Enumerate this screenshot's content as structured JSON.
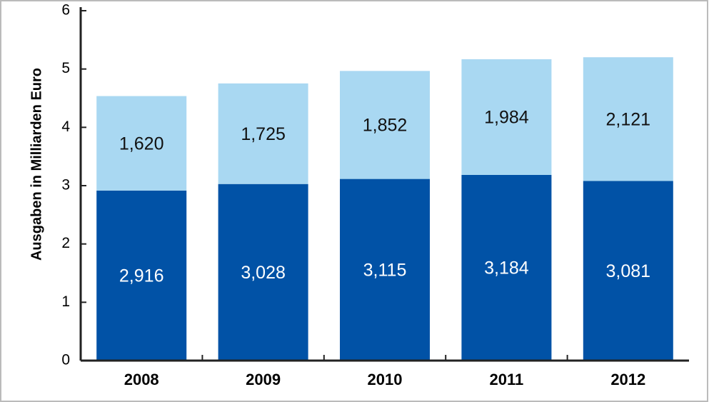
{
  "chart_data": {
    "type": "stacked-bar",
    "y_label": "Ausgaben in Milliarden Euro",
    "categories": [
      "2008",
      "2009",
      "2010",
      "2011",
      "2012"
    ],
    "series": [
      {
        "color": "#0152a6",
        "label_color": "#ffffff",
        "values": [
          2.916,
          3.028,
          3.115,
          3.184,
          3.081
        ],
        "value_labels": [
          "2,916",
          "3,028",
          "3,115",
          "3,184",
          "3,081"
        ]
      },
      {
        "color": "#a9d8f2",
        "label_color": "#111111",
        "values": [
          1.62,
          1.725,
          1.852,
          1.984,
          2.121
        ],
        "value_labels": [
          "1,620",
          "1,725",
          "1,852",
          "1,984",
          "2,121"
        ]
      }
    ],
    "ylim": [
      0,
      6
    ],
    "yticks": [
      0,
      1,
      2,
      3,
      4,
      5,
      6
    ],
    "grid": false
  }
}
